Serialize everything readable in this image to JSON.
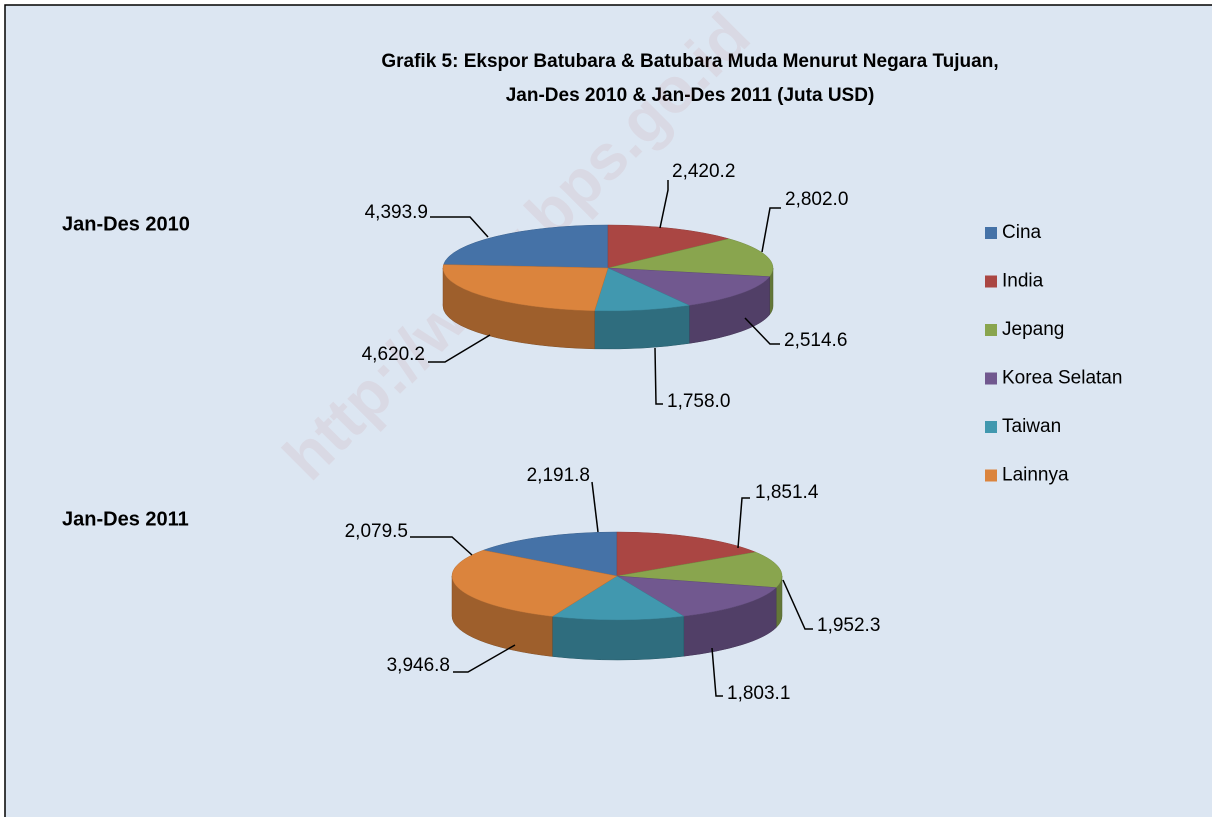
{
  "title": "Grafik 5: Ekspor Batubara & Batubara Muda Menurut Negara Tujuan,",
  "subtitle": "Jan-Des 2010 & Jan-Des 2011 (Juta USD)",
  "watermark": "http://www.bps.go.id",
  "chart_data": [
    {
      "type": "pie",
      "name": "Jan-Des 2010",
      "categories": [
        "Cina",
        "India",
        "Jepang",
        "Korea Selatan",
        "Taiwan",
        "Lainnya"
      ],
      "values": [
        4393.9,
        2420.2,
        2802.0,
        2514.6,
        1758.0,
        4620.2
      ],
      "value_labels": [
        "4,393.9",
        "2,420.2",
        "2,802.0",
        "2,514.6",
        "1,758.0",
        "4,620.2"
      ],
      "colors": [
        "#4572a7",
        "#aa4643",
        "#89a54e",
        "#71588f",
        "#4198af",
        "#db843d"
      ]
    },
    {
      "type": "pie",
      "name": "Jan-Des 2011",
      "categories": [
        "Cina",
        "India",
        "Jepang",
        "Korea Selatan",
        "Taiwan",
        "Lainnya"
      ],
      "values": [
        2079.5,
        2191.8,
        1851.4,
        1952.3,
        1803.1,
        3946.8
      ],
      "value_labels": [
        "2,079.5",
        "2,191.8",
        "1,851.4",
        "1,952.3",
        "1,803.1",
        "3,946.8"
      ],
      "colors": [
        "#4572a7",
        "#aa4643",
        "#89a54e",
        "#71588f",
        "#4198af",
        "#db843d"
      ]
    }
  ],
  "legend": "right"
}
